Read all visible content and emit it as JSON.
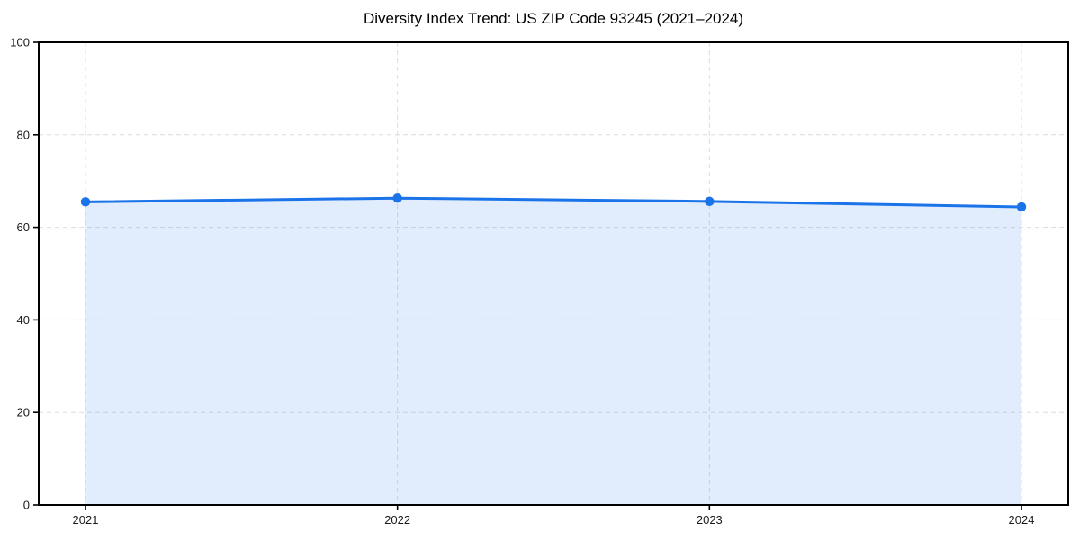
{
  "figure": {
    "background": "#ffffff"
  },
  "chart_data": {
    "type": "line",
    "title": "Diversity Index Trend: US ZIP Code 93245 (2021–2024)",
    "x": [
      "2021",
      "2022",
      "2023",
      "2024"
    ],
    "values": [
      65.5,
      66.3,
      65.6,
      64.4
    ],
    "xlabel": "",
    "ylabel": "",
    "ylim": [
      0,
      100
    ],
    "yticks": [
      0,
      20,
      40,
      60,
      80,
      100
    ],
    "grid": true,
    "grid_style": "dashed",
    "legend": false,
    "marker": "circle",
    "area_fill_under_line": true,
    "colors": {
      "line": "#1a73e8",
      "area_fill": "#1a73e8",
      "area_alpha": 0.13,
      "grid": "#dcdcdc",
      "spine": "#000000",
      "tick_label": "#1a1a1a",
      "title": "#000000"
    }
  }
}
